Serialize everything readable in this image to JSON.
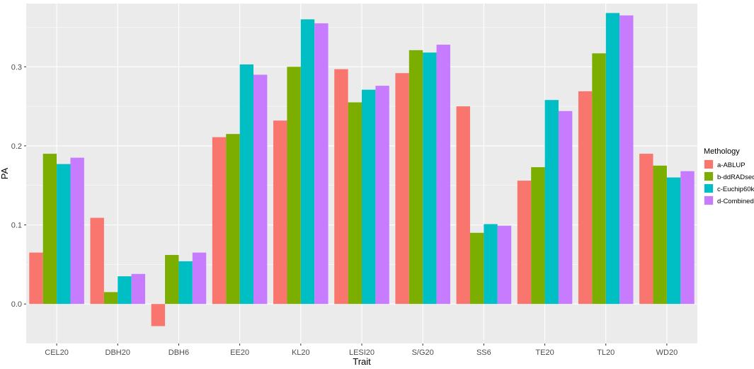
{
  "chart_data": {
    "type": "bar",
    "xlabel": "Trait",
    "ylabel": "PA",
    "categories": [
      "CEL20",
      "DBH20",
      "DBH6",
      "EE20",
      "KL20",
      "LESI20",
      "S/G20",
      "SS6",
      "TE20",
      "TL20",
      "WD20"
    ],
    "ylim": [
      -0.05,
      0.38
    ],
    "yticks": [
      0.0,
      0.1,
      0.2,
      0.3
    ],
    "ytick_labels": [
      "0.0",
      "0.1",
      "0.2",
      "0.3"
    ],
    "grid": true,
    "legend": {
      "title": "Methology",
      "position": "right"
    },
    "series": [
      {
        "name": "a-ABLUP",
        "color": "#F8766D",
        "values": [
          0.065,
          0.109,
          -0.028,
          0.211,
          0.232,
          0.297,
          0.292,
          0.25,
          0.156,
          0.269,
          0.19
        ]
      },
      {
        "name": "b-ddRADseq",
        "color": "#7CAE00",
        "values": [
          0.19,
          0.015,
          0.062,
          0.215,
          0.3,
          0.255,
          0.321,
          0.09,
          0.173,
          0.317,
          0.175
        ]
      },
      {
        "name": "c-Euchip60k",
        "color": "#00BFC4",
        "values": [
          0.177,
          0.035,
          0.054,
          0.303,
          0.36,
          0.271,
          0.318,
          0.101,
          0.258,
          0.368,
          0.16
        ]
      },
      {
        "name": "d-Combined",
        "color": "#C77CFF",
        "values": [
          0.185,
          0.038,
          0.065,
          0.29,
          0.355,
          0.276,
          0.328,
          0.099,
          0.244,
          0.365,
          0.168
        ]
      }
    ]
  }
}
